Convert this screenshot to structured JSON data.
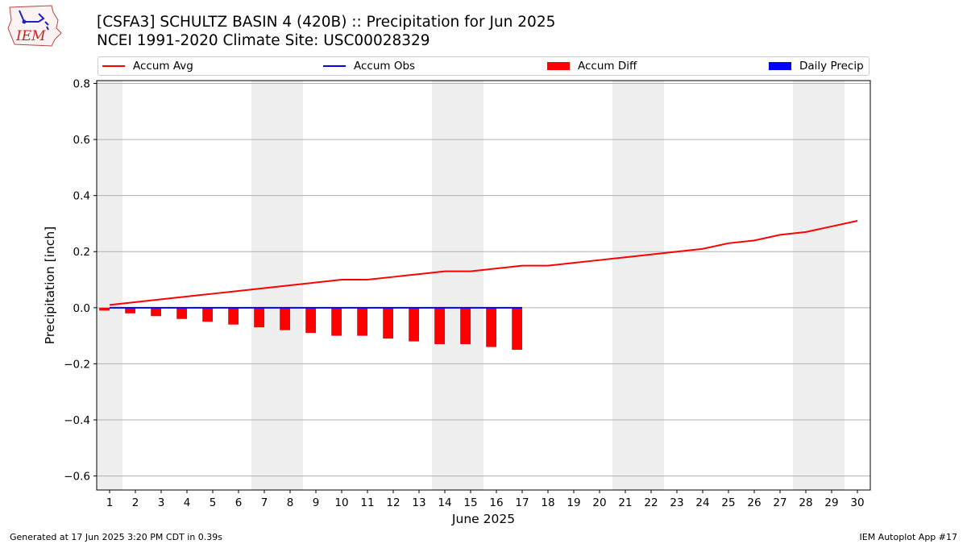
{
  "header": {
    "title_line1": "[CSFA3] SCHULTZ BASIN 4 (420B) :: Precipitation for Jun 2025",
    "title_line2": "NCEI 1991-2020 Climate Site: USC00028329",
    "logo_text": "IEM"
  },
  "footer": {
    "left": "Generated at 17 Jun 2025 3:20 PM CDT in 0.39s",
    "right": "IEM Autoplot App #17"
  },
  "colors": {
    "accum_avg": "#ff0000",
    "accum_obs": "#0000ff",
    "accum_diff": "#ff0000",
    "daily_precip": "#0000ff",
    "weekend_shade": "#eeeeee",
    "grid": "#b0b0b0"
  },
  "chart_data": {
    "type": "bar",
    "xlabel": "June 2025",
    "ylabel": "Precipitation [inch]",
    "xlim": [
      0.5,
      30.5
    ],
    "ylim": [
      -0.65,
      0.81
    ],
    "yticks": [
      -0.6,
      -0.4,
      -0.2,
      0.0,
      0.2,
      0.4,
      0.6,
      0.8
    ],
    "ytick_labels": [
      "−0.6",
      "−0.4",
      "−0.2",
      "0.0",
      "0.2",
      "0.4",
      "0.6",
      "0.8"
    ],
    "days": [
      1,
      2,
      3,
      4,
      5,
      6,
      7,
      8,
      9,
      10,
      11,
      12,
      13,
      14,
      15,
      16,
      17,
      18,
      19,
      20,
      21,
      22,
      23,
      24,
      25,
      26,
      27,
      28,
      29,
      30
    ],
    "weekend_days": [
      1,
      7,
      8,
      14,
      15,
      21,
      22,
      28,
      29
    ],
    "legend": [
      "Accum Avg",
      "Accum Obs",
      "Accum Diff",
      "Daily Precip"
    ],
    "grid": true,
    "series": [
      {
        "name": "Accum Avg",
        "kind": "line",
        "x": [
          1,
          2,
          3,
          4,
          5,
          6,
          7,
          8,
          9,
          10,
          11,
          12,
          13,
          14,
          15,
          16,
          17,
          18,
          19,
          20,
          21,
          22,
          23,
          24,
          25,
          26,
          27,
          28,
          29,
          30
        ],
        "values": [
          0.01,
          0.02,
          0.03,
          0.04,
          0.05,
          0.06,
          0.07,
          0.08,
          0.09,
          0.1,
          0.1,
          0.11,
          0.12,
          0.13,
          0.13,
          0.14,
          0.15,
          0.15,
          0.16,
          0.17,
          0.18,
          0.19,
          0.2,
          0.21,
          0.23,
          0.24,
          0.26,
          0.27,
          0.29,
          0.31
        ]
      },
      {
        "name": "Accum Obs",
        "kind": "line",
        "x": [
          1,
          2,
          3,
          4,
          5,
          6,
          7,
          8,
          9,
          10,
          11,
          12,
          13,
          14,
          15,
          16,
          17
        ],
        "values": [
          0,
          0,
          0,
          0,
          0,
          0,
          0,
          0,
          0,
          0,
          0,
          0,
          0,
          0,
          0,
          0,
          0
        ]
      },
      {
        "name": "Accum Diff",
        "kind": "bar",
        "x": [
          1,
          2,
          3,
          4,
          5,
          6,
          7,
          8,
          9,
          10,
          11,
          12,
          13,
          14,
          15,
          16,
          17
        ],
        "values": [
          -0.01,
          -0.02,
          -0.03,
          -0.04,
          -0.05,
          -0.06,
          -0.07,
          -0.08,
          -0.09,
          -0.1,
          -0.1,
          -0.11,
          -0.12,
          -0.13,
          -0.13,
          -0.14,
          -0.15
        ]
      },
      {
        "name": "Daily Precip",
        "kind": "bar",
        "x": [
          1,
          2,
          3,
          4,
          5,
          6,
          7,
          8,
          9,
          10,
          11,
          12,
          13,
          14,
          15,
          16,
          17
        ],
        "values": [
          0,
          0,
          0,
          0,
          0,
          0,
          0,
          0,
          0,
          0,
          0,
          0,
          0,
          0,
          0,
          0,
          0
        ]
      }
    ]
  }
}
